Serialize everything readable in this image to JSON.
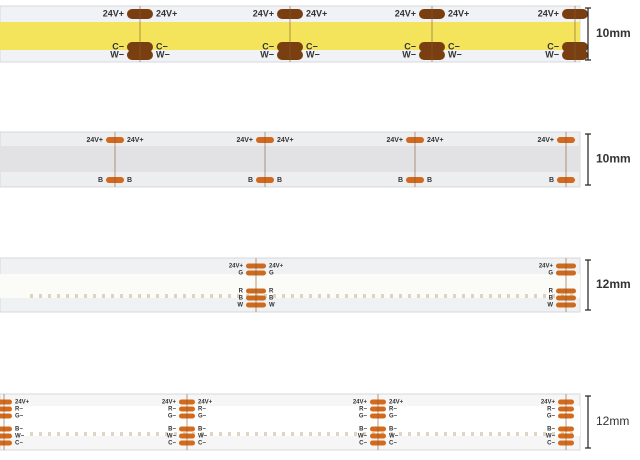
{
  "strips": [
    {
      "width_label": "10mm",
      "top_labels": [
        "24V+"
      ],
      "bottom_labels": [
        "C−",
        "W−"
      ]
    },
    {
      "width_label": "10mm",
      "top_labels": [
        "24V+"
      ],
      "bottom_labels": [
        "B"
      ]
    },
    {
      "width_label": "12mm",
      "top_labels": [
        "24V+",
        "G"
      ],
      "bottom_labels": [
        "R",
        "B",
        "W"
      ]
    },
    {
      "width_label": "12mm",
      "top_labels": [
        "24V+",
        "R−",
        "G−"
      ],
      "bottom_labels": [
        "B−",
        "W−",
        "C−"
      ]
    }
  ]
}
